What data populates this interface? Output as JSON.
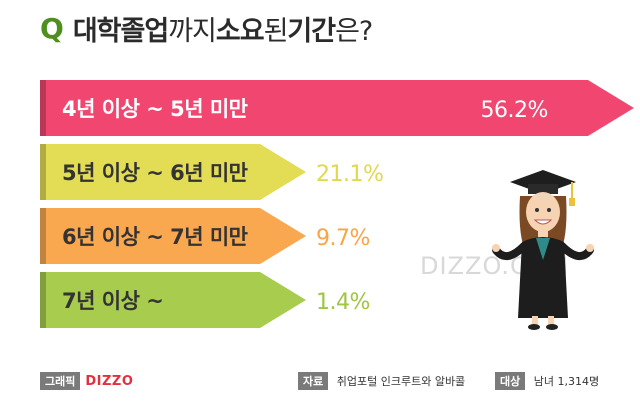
{
  "title": {
    "q": "Q",
    "parts": [
      {
        "text": "대학 ",
        "bold": true
      },
      {
        "text": "졸업",
        "bold": true
      },
      {
        "text": "까지 ",
        "bold": false
      },
      {
        "text": "소요",
        "bold": true
      },
      {
        "text": "된 ",
        "bold": false
      },
      {
        "text": "기간",
        "bold": true
      },
      {
        "text": "은?",
        "bold": false
      }
    ]
  },
  "watermark": "DIZZO.COM",
  "footer": {
    "graphic_label": "그래픽",
    "brand": "DIZZO",
    "source_label": "자료",
    "source": "취업포털 인크루트와 알바콜",
    "target_label": "대상",
    "target": "남녀 1,314명"
  },
  "chart_data": {
    "type": "bar",
    "orientation": "horizontal",
    "categories": [
      "4년 이상 ~ 5년 미만",
      "5년 이상 ~ 6년 미만",
      "6년 이상 ~ 7년 미만",
      "7년 이상 ~"
    ],
    "values": [
      56.2,
      21.1,
      9.7,
      1.4
    ],
    "value_labels": [
      "56.2%",
      "21.1%",
      "9.7%",
      "1.4%"
    ],
    "colors": [
      "#f0466f",
      "#e3dc55",
      "#f9a850",
      "#a7cc4e"
    ],
    "label_colors": [
      "#ffffff",
      "#e0d94d",
      "#f7a546",
      "#9ec640"
    ],
    "title": "",
    "xlabel": "",
    "ylabel": ""
  }
}
